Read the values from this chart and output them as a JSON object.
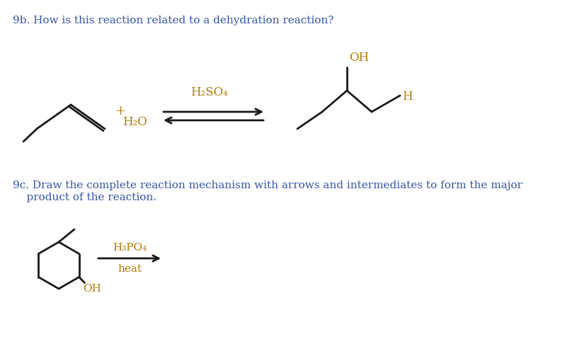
{
  "bg_color": "#ffffff",
  "blue": "#3355aa",
  "black": "#1a1a1a",
  "orange": "#bb7700",
  "title_9b": "9b. How is this reaction related to a dehydration reaction?",
  "line_9c_1": "9c. Draw the complete reaction mechanism with arrows and intermediates to form the major",
  "line_9c_2": "    product of the reaction.",
  "h2so4": "H₂SO₄",
  "h2o": "H₂O",
  "plus": "+",
  "oh": "OH",
  "h": "H",
  "h3po4": "H₃PO₄",
  "heat": "heat"
}
